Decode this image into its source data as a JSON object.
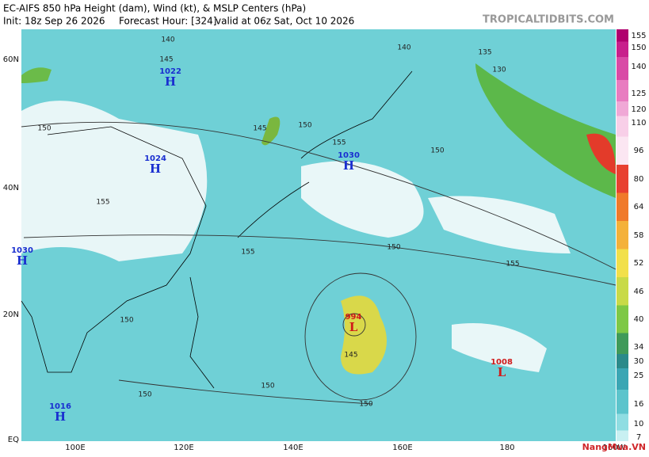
{
  "header": {
    "title": "EC-AIFS 850 hPa Height (dam), Wind (kt), & MSLP Centers (hPa)",
    "init": "Init: 18z Sep 26 2026",
    "forecast_hour": "Forecast Hour: [324]",
    "valid": "valid at 06z Sat, Oct 10 2026",
    "site": "TROPICALTIDBITS.COM"
  },
  "map": {
    "lat_labels": [
      "60N",
      "40N",
      "20N",
      "EQ"
    ],
    "lon_labels": [
      "100E",
      "120E",
      "140E",
      "160E",
      "180",
      "160W"
    ],
    "pressure_centers": [
      {
        "value": "1022",
        "type": "H"
      },
      {
        "value": "1024",
        "type": "H"
      },
      {
        "value": "1030",
        "type": "H"
      },
      {
        "value": "1030",
        "type": "H"
      },
      {
        "value": "1016",
        "type": "H"
      },
      {
        "value": "994",
        "type": "L"
      },
      {
        "value": "1008",
        "type": "L"
      }
    ],
    "contour_labels": [
      "140",
      "145",
      "150",
      "145",
      "150",
      "155",
      "155",
      "150",
      "140",
      "135",
      "130",
      "150",
      "155",
      "155",
      "150",
      "145",
      "150",
      "150",
      "150"
    ]
  },
  "colorbar": {
    "ticks": [
      155,
      150,
      140,
      125,
      120,
      110,
      96,
      80,
      64,
      58,
      52,
      46,
      40,
      34,
      30,
      25,
      16,
      10,
      7
    ]
  },
  "watermark": "NangMua.VN"
}
